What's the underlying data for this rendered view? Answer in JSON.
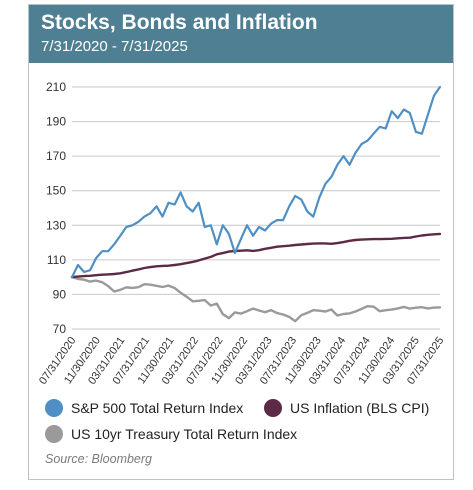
{
  "header": {
    "title": "Stocks, Bonds and Inflation",
    "subtitle": "7/31/2020 - 7/31/2025",
    "bg_color": "#4f7f92"
  },
  "source": "Source: Bloomberg",
  "chart_data": {
    "type": "line",
    "title": "Stocks, Bonds and Inflation",
    "subtitle": "7/31/2020 - 7/31/2025",
    "xlabel": "",
    "ylabel": "",
    "ylim": [
      70,
      210
    ],
    "yticks": [
      70,
      90,
      110,
      130,
      150,
      170,
      190,
      210
    ],
    "ytick_labels": [
      "70",
      "90",
      "110",
      "130",
      "150",
      "170",
      "190",
      "210"
    ],
    "xtick_labels": [
      "07/31/2020",
      "11/30/2020",
      "03/31/2021",
      "07/31/2021",
      "11/30/2021",
      "03/31/2022",
      "07/31/2022",
      "11/30/2022",
      "03/31/2023",
      "07/31/2023",
      "11/30/2023",
      "03/31/2024",
      "07/31/2024",
      "11/30/2024",
      "03/31/2025",
      "07/31/2025"
    ],
    "grid": "horizontal",
    "legend_position": "bottom",
    "series": [
      {
        "name": "S&P 500 Total Return Index",
        "color": "#4f8fc4",
        "values": [
          100,
          107,
          103,
          104,
          111,
          115,
          115,
          119,
          124,
          129,
          130,
          132,
          135,
          137,
          141,
          135,
          143,
          142,
          149,
          141,
          138,
          143,
          129,
          130,
          119,
          130,
          125,
          114,
          122,
          130,
          124,
          129,
          127,
          131,
          133,
          133,
          141,
          147,
          145,
          138,
          135,
          146,
          154,
          158,
          165,
          170,
          165,
          172,
          177,
          179,
          183,
          187,
          186,
          196,
          192,
          197,
          195,
          184,
          183,
          194,
          205,
          210
        ]
      },
      {
        "name": "US Inflation (BLS CPI)",
        "color": "#5c2a45",
        "values": [
          100,
          100.3,
          100.6,
          100.8,
          101.1,
          101.4,
          101.6,
          101.8,
          102.2,
          102.9,
          103.7,
          104.5,
          105.3,
          105.8,
          106.3,
          106.5,
          106.6,
          107.0,
          107.5,
          108.1,
          108.8,
          109.7,
          110.7,
          111.7,
          113.2,
          113.9,
          114.8,
          115.1,
          115.3,
          115.5,
          115.2,
          115.6,
          116.4,
          117.0,
          117.6,
          117.9,
          118.2,
          118.6,
          118.9,
          119.2,
          119.4,
          119.5,
          119.5,
          119.3,
          119.7,
          120.3,
          121.0,
          121.5,
          121.7,
          121.9,
          122.0,
          122.0,
          122.1,
          122.2,
          122.5,
          122.7,
          122.8,
          123.5,
          124.1,
          124.5,
          124.8,
          125.0
        ]
      },
      {
        "name": "US 10yr Treasury Total Return Index",
        "color": "#9a9a9a",
        "values": [
          100,
          99,
          98.5,
          97.4,
          98,
          97.1,
          94.8,
          91.7,
          92.7,
          94.1,
          93.8,
          94.2,
          95.9,
          95.6,
          95,
          94.3,
          95.1,
          93.7,
          91,
          88.7,
          86,
          86.3,
          86.7,
          83.6,
          84.7,
          78.6,
          76.3,
          79.6,
          78.9,
          80.3,
          81.8,
          80.7,
          79.7,
          80.9,
          79.2,
          78.4,
          77,
          74.5,
          77.9,
          79.3,
          80.9,
          80.6,
          80.1,
          81.3,
          77.8,
          78.7,
          79,
          80.1,
          81.6,
          83.2,
          82.9,
          80.3,
          80.9,
          81.2,
          81.9,
          82.8,
          81.8,
          82.3,
          82.6,
          81.9,
          82.4,
          82.5
        ]
      }
    ]
  },
  "legend": {
    "items": [
      {
        "label": "S&P 500 Total Return Index",
        "color": "#4f8fc4"
      },
      {
        "label": "US Inflation (BLS CPI)",
        "color": "#5c2a45"
      },
      {
        "label": "US 10yr Treasury Total Return Index",
        "color": "#9a9a9a"
      }
    ]
  }
}
